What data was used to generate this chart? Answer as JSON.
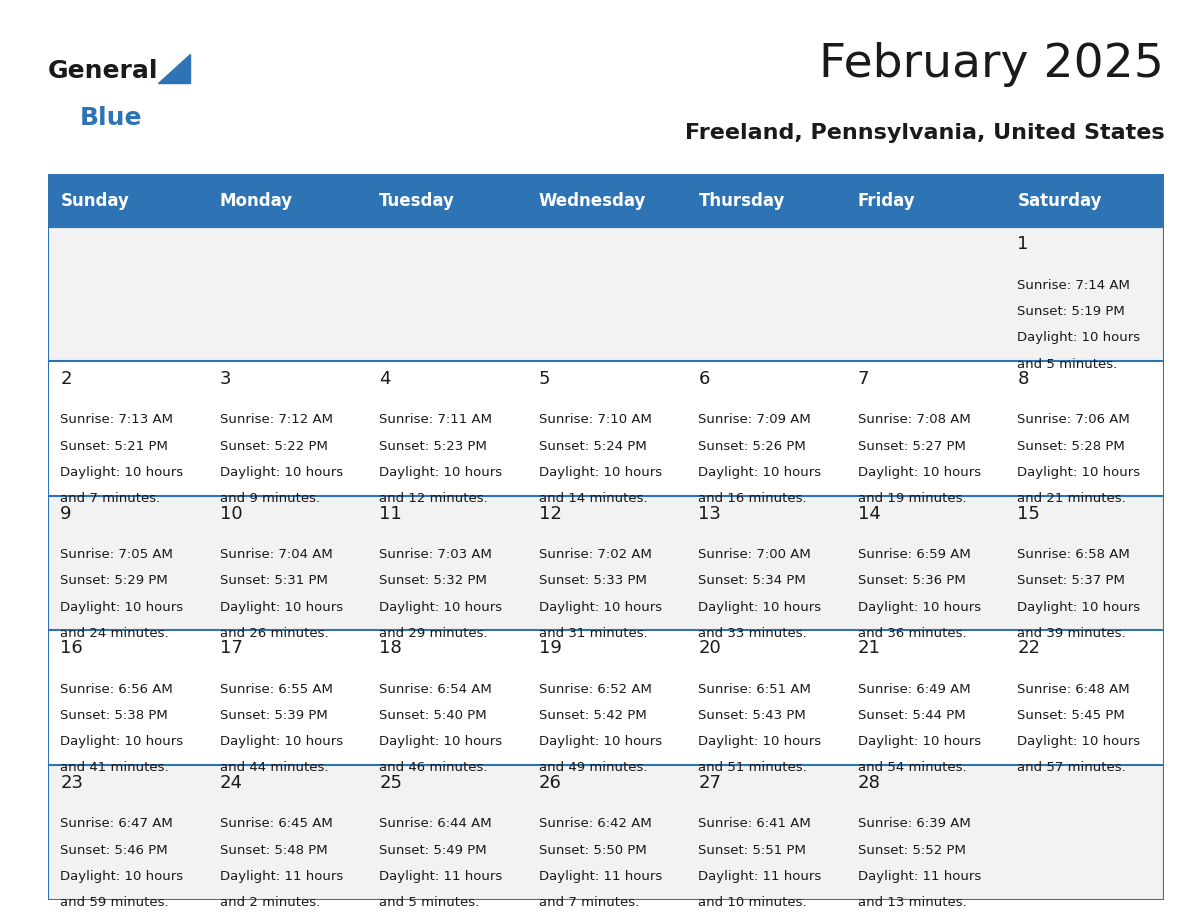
{
  "title": "February 2025",
  "subtitle": "Freeland, Pennsylvania, United States",
  "header_bg_color": "#2E74B5",
  "header_text_color": "#FFFFFF",
  "cell_bg_color": "#FFFFFF",
  "alt_row_bg": "#F2F2F2",
  "border_color": "#2E74B5",
  "day_headers": [
    "Sunday",
    "Monday",
    "Tuesday",
    "Wednesday",
    "Thursday",
    "Friday",
    "Saturday"
  ],
  "title_color": "#1a1a1a",
  "subtitle_color": "#1a1a1a",
  "days": [
    {
      "day": 1,
      "col": 6,
      "row": 0,
      "sunrise": "7:14 AM",
      "sunset": "5:19 PM",
      "daylight": "10 hours and 5 minutes."
    },
    {
      "day": 2,
      "col": 0,
      "row": 1,
      "sunrise": "7:13 AM",
      "sunset": "5:21 PM",
      "daylight": "10 hours and 7 minutes."
    },
    {
      "day": 3,
      "col": 1,
      "row": 1,
      "sunrise": "7:12 AM",
      "sunset": "5:22 PM",
      "daylight": "10 hours and 9 minutes."
    },
    {
      "day": 4,
      "col": 2,
      "row": 1,
      "sunrise": "7:11 AM",
      "sunset": "5:23 PM",
      "daylight": "10 hours and 12 minutes."
    },
    {
      "day": 5,
      "col": 3,
      "row": 1,
      "sunrise": "7:10 AM",
      "sunset": "5:24 PM",
      "daylight": "10 hours and 14 minutes."
    },
    {
      "day": 6,
      "col": 4,
      "row": 1,
      "sunrise": "7:09 AM",
      "sunset": "5:26 PM",
      "daylight": "10 hours and 16 minutes."
    },
    {
      "day": 7,
      "col": 5,
      "row": 1,
      "sunrise": "7:08 AM",
      "sunset": "5:27 PM",
      "daylight": "10 hours and 19 minutes."
    },
    {
      "day": 8,
      "col": 6,
      "row": 1,
      "sunrise": "7:06 AM",
      "sunset": "5:28 PM",
      "daylight": "10 hours and 21 minutes."
    },
    {
      "day": 9,
      "col": 0,
      "row": 2,
      "sunrise": "7:05 AM",
      "sunset": "5:29 PM",
      "daylight": "10 hours and 24 minutes."
    },
    {
      "day": 10,
      "col": 1,
      "row": 2,
      "sunrise": "7:04 AM",
      "sunset": "5:31 PM",
      "daylight": "10 hours and 26 minutes."
    },
    {
      "day": 11,
      "col": 2,
      "row": 2,
      "sunrise": "7:03 AM",
      "sunset": "5:32 PM",
      "daylight": "10 hours and 29 minutes."
    },
    {
      "day": 12,
      "col": 3,
      "row": 2,
      "sunrise": "7:02 AM",
      "sunset": "5:33 PM",
      "daylight": "10 hours and 31 minutes."
    },
    {
      "day": 13,
      "col": 4,
      "row": 2,
      "sunrise": "7:00 AM",
      "sunset": "5:34 PM",
      "daylight": "10 hours and 33 minutes."
    },
    {
      "day": 14,
      "col": 5,
      "row": 2,
      "sunrise": "6:59 AM",
      "sunset": "5:36 PM",
      "daylight": "10 hours and 36 minutes."
    },
    {
      "day": 15,
      "col": 6,
      "row": 2,
      "sunrise": "6:58 AM",
      "sunset": "5:37 PM",
      "daylight": "10 hours and 39 minutes."
    },
    {
      "day": 16,
      "col": 0,
      "row": 3,
      "sunrise": "6:56 AM",
      "sunset": "5:38 PM",
      "daylight": "10 hours and 41 minutes."
    },
    {
      "day": 17,
      "col": 1,
      "row": 3,
      "sunrise": "6:55 AM",
      "sunset": "5:39 PM",
      "daylight": "10 hours and 44 minutes."
    },
    {
      "day": 18,
      "col": 2,
      "row": 3,
      "sunrise": "6:54 AM",
      "sunset": "5:40 PM",
      "daylight": "10 hours and 46 minutes."
    },
    {
      "day": 19,
      "col": 3,
      "row": 3,
      "sunrise": "6:52 AM",
      "sunset": "5:42 PM",
      "daylight": "10 hours and 49 minutes."
    },
    {
      "day": 20,
      "col": 4,
      "row": 3,
      "sunrise": "6:51 AM",
      "sunset": "5:43 PM",
      "daylight": "10 hours and 51 minutes."
    },
    {
      "day": 21,
      "col": 5,
      "row": 3,
      "sunrise": "6:49 AM",
      "sunset": "5:44 PM",
      "daylight": "10 hours and 54 minutes."
    },
    {
      "day": 22,
      "col": 6,
      "row": 3,
      "sunrise": "6:48 AM",
      "sunset": "5:45 PM",
      "daylight": "10 hours and 57 minutes."
    },
    {
      "day": 23,
      "col": 0,
      "row": 4,
      "sunrise": "6:47 AM",
      "sunset": "5:46 PM",
      "daylight": "10 hours and 59 minutes."
    },
    {
      "day": 24,
      "col": 1,
      "row": 4,
      "sunrise": "6:45 AM",
      "sunset": "5:48 PM",
      "daylight": "11 hours and 2 minutes."
    },
    {
      "day": 25,
      "col": 2,
      "row": 4,
      "sunrise": "6:44 AM",
      "sunset": "5:49 PM",
      "daylight": "11 hours and 5 minutes."
    },
    {
      "day": 26,
      "col": 3,
      "row": 4,
      "sunrise": "6:42 AM",
      "sunset": "5:50 PM",
      "daylight": "11 hours and 7 minutes."
    },
    {
      "day": 27,
      "col": 4,
      "row": 4,
      "sunrise": "6:41 AM",
      "sunset": "5:51 PM",
      "daylight": "11 hours and 10 minutes."
    },
    {
      "day": 28,
      "col": 5,
      "row": 4,
      "sunrise": "6:39 AM",
      "sunset": "5:52 PM",
      "daylight": "11 hours and 13 minutes."
    }
  ],
  "num_rows": 5,
  "num_cols": 7,
  "logo_text_general": "General",
  "logo_text_blue": "Blue",
  "logo_triangle_color": "#2E74B5"
}
